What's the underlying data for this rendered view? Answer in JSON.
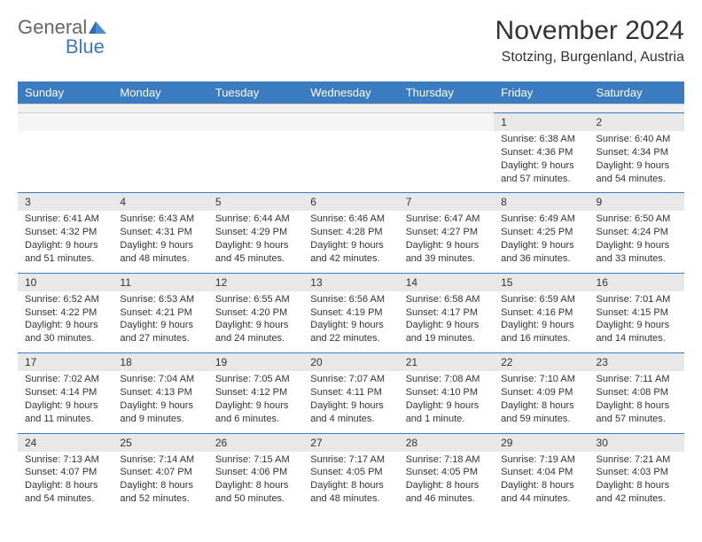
{
  "logo": {
    "text1": "General",
    "text2": "Blue"
  },
  "title": "November 2024",
  "location": "Stotzing, Burgenland, Austria",
  "colors": {
    "header_bg": "#3b7bbf",
    "header_text": "#ffffff",
    "daynum_bg": "#e8e8e8",
    "border_accent": "#3b7bbf",
    "text": "#333333"
  },
  "weekdays": [
    "Sunday",
    "Monday",
    "Tuesday",
    "Wednesday",
    "Thursday",
    "Friday",
    "Saturday"
  ],
  "weeks": [
    [
      null,
      null,
      null,
      null,
      null,
      {
        "n": "1",
        "sr": "Sunrise: 6:38 AM",
        "ss": "Sunset: 4:36 PM",
        "dl": "Daylight: 9 hours and 57 minutes."
      },
      {
        "n": "2",
        "sr": "Sunrise: 6:40 AM",
        "ss": "Sunset: 4:34 PM",
        "dl": "Daylight: 9 hours and 54 minutes."
      }
    ],
    [
      {
        "n": "3",
        "sr": "Sunrise: 6:41 AM",
        "ss": "Sunset: 4:32 PM",
        "dl": "Daylight: 9 hours and 51 minutes."
      },
      {
        "n": "4",
        "sr": "Sunrise: 6:43 AM",
        "ss": "Sunset: 4:31 PM",
        "dl": "Daylight: 9 hours and 48 minutes."
      },
      {
        "n": "5",
        "sr": "Sunrise: 6:44 AM",
        "ss": "Sunset: 4:29 PM",
        "dl": "Daylight: 9 hours and 45 minutes."
      },
      {
        "n": "6",
        "sr": "Sunrise: 6:46 AM",
        "ss": "Sunset: 4:28 PM",
        "dl": "Daylight: 9 hours and 42 minutes."
      },
      {
        "n": "7",
        "sr": "Sunrise: 6:47 AM",
        "ss": "Sunset: 4:27 PM",
        "dl": "Daylight: 9 hours and 39 minutes."
      },
      {
        "n": "8",
        "sr": "Sunrise: 6:49 AM",
        "ss": "Sunset: 4:25 PM",
        "dl": "Daylight: 9 hours and 36 minutes."
      },
      {
        "n": "9",
        "sr": "Sunrise: 6:50 AM",
        "ss": "Sunset: 4:24 PM",
        "dl": "Daylight: 9 hours and 33 minutes."
      }
    ],
    [
      {
        "n": "10",
        "sr": "Sunrise: 6:52 AM",
        "ss": "Sunset: 4:22 PM",
        "dl": "Daylight: 9 hours and 30 minutes."
      },
      {
        "n": "11",
        "sr": "Sunrise: 6:53 AM",
        "ss": "Sunset: 4:21 PM",
        "dl": "Daylight: 9 hours and 27 minutes."
      },
      {
        "n": "12",
        "sr": "Sunrise: 6:55 AM",
        "ss": "Sunset: 4:20 PM",
        "dl": "Daylight: 9 hours and 24 minutes."
      },
      {
        "n": "13",
        "sr": "Sunrise: 6:56 AM",
        "ss": "Sunset: 4:19 PM",
        "dl": "Daylight: 9 hours and 22 minutes."
      },
      {
        "n": "14",
        "sr": "Sunrise: 6:58 AM",
        "ss": "Sunset: 4:17 PM",
        "dl": "Daylight: 9 hours and 19 minutes."
      },
      {
        "n": "15",
        "sr": "Sunrise: 6:59 AM",
        "ss": "Sunset: 4:16 PM",
        "dl": "Daylight: 9 hours and 16 minutes."
      },
      {
        "n": "16",
        "sr": "Sunrise: 7:01 AM",
        "ss": "Sunset: 4:15 PM",
        "dl": "Daylight: 9 hours and 14 minutes."
      }
    ],
    [
      {
        "n": "17",
        "sr": "Sunrise: 7:02 AM",
        "ss": "Sunset: 4:14 PM",
        "dl": "Daylight: 9 hours and 11 minutes."
      },
      {
        "n": "18",
        "sr": "Sunrise: 7:04 AM",
        "ss": "Sunset: 4:13 PM",
        "dl": "Daylight: 9 hours and 9 minutes."
      },
      {
        "n": "19",
        "sr": "Sunrise: 7:05 AM",
        "ss": "Sunset: 4:12 PM",
        "dl": "Daylight: 9 hours and 6 minutes."
      },
      {
        "n": "20",
        "sr": "Sunrise: 7:07 AM",
        "ss": "Sunset: 4:11 PM",
        "dl": "Daylight: 9 hours and 4 minutes."
      },
      {
        "n": "21",
        "sr": "Sunrise: 7:08 AM",
        "ss": "Sunset: 4:10 PM",
        "dl": "Daylight: 9 hours and 1 minute."
      },
      {
        "n": "22",
        "sr": "Sunrise: 7:10 AM",
        "ss": "Sunset: 4:09 PM",
        "dl": "Daylight: 8 hours and 59 minutes."
      },
      {
        "n": "23",
        "sr": "Sunrise: 7:11 AM",
        "ss": "Sunset: 4:08 PM",
        "dl": "Daylight: 8 hours and 57 minutes."
      }
    ],
    [
      {
        "n": "24",
        "sr": "Sunrise: 7:13 AM",
        "ss": "Sunset: 4:07 PM",
        "dl": "Daylight: 8 hours and 54 minutes."
      },
      {
        "n": "25",
        "sr": "Sunrise: 7:14 AM",
        "ss": "Sunset: 4:07 PM",
        "dl": "Daylight: 8 hours and 52 minutes."
      },
      {
        "n": "26",
        "sr": "Sunrise: 7:15 AM",
        "ss": "Sunset: 4:06 PM",
        "dl": "Daylight: 8 hours and 50 minutes."
      },
      {
        "n": "27",
        "sr": "Sunrise: 7:17 AM",
        "ss": "Sunset: 4:05 PM",
        "dl": "Daylight: 8 hours and 48 minutes."
      },
      {
        "n": "28",
        "sr": "Sunrise: 7:18 AM",
        "ss": "Sunset: 4:05 PM",
        "dl": "Daylight: 8 hours and 46 minutes."
      },
      {
        "n": "29",
        "sr": "Sunrise: 7:19 AM",
        "ss": "Sunset: 4:04 PM",
        "dl": "Daylight: 8 hours and 44 minutes."
      },
      {
        "n": "30",
        "sr": "Sunrise: 7:21 AM",
        "ss": "Sunset: 4:03 PM",
        "dl": "Daylight: 8 hours and 42 minutes."
      }
    ]
  ]
}
